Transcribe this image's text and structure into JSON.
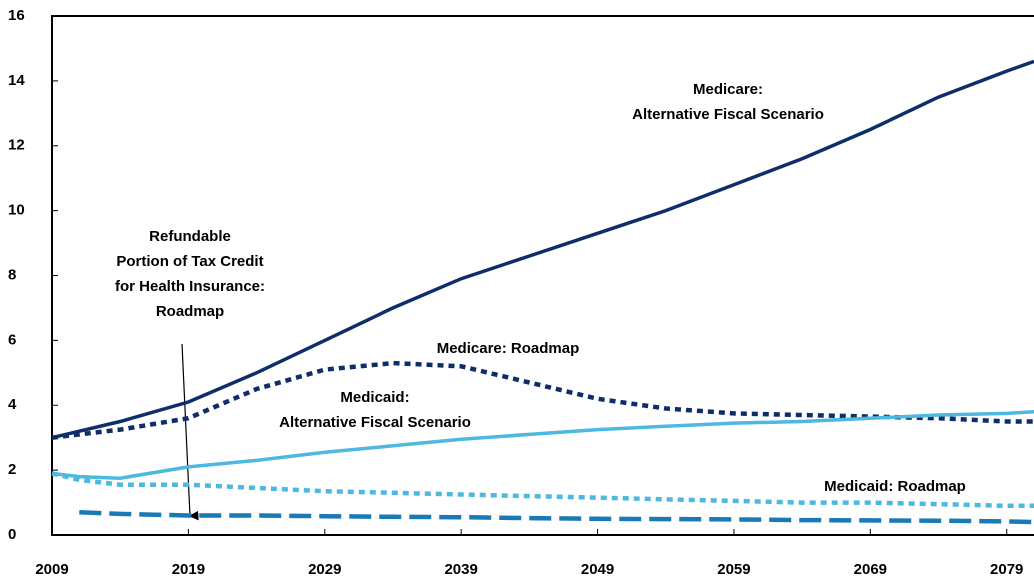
{
  "chart_data": {
    "type": "line",
    "x": [
      2009,
      2011,
      2014,
      2019,
      2024,
      2029,
      2034,
      2039,
      2044,
      2049,
      2054,
      2059,
      2064,
      2069,
      2074,
      2079,
      2081
    ],
    "xlim": [
      2009,
      2081
    ],
    "xticks": [
      2009,
      2019,
      2029,
      2039,
      2049,
      2059,
      2069,
      2079
    ],
    "ylim": [
      0,
      16
    ],
    "yticks": [
      0,
      2,
      4,
      6,
      8,
      10,
      12,
      14,
      16
    ],
    "grid": false,
    "series": [
      {
        "label": [
          "Medicare:",
          "Alternative Fiscal Scenario"
        ],
        "color": "#0d2d6b",
        "dash": "solid",
        "values": [
          3.0,
          3.2,
          3.5,
          4.1,
          5.0,
          6.0,
          7.0,
          7.9,
          8.6,
          9.3,
          10.0,
          10.8,
          11.6,
          12.5,
          13.5,
          14.3,
          14.6
        ]
      },
      {
        "label": [
          "Medicare: Roadmap"
        ],
        "color": "#0d2d6b",
        "dash": "dotted",
        "values": [
          3.0,
          3.1,
          3.25,
          3.6,
          4.5,
          5.1,
          5.3,
          5.2,
          4.7,
          4.2,
          3.9,
          3.75,
          3.7,
          3.65,
          3.6,
          3.5,
          3.5
        ]
      },
      {
        "label": [
          "Medicaid:",
          "Alternative Fiscal Scenario"
        ],
        "color": "#4db8e0",
        "dash": "solid",
        "values": [
          1.9,
          1.8,
          1.75,
          2.1,
          2.3,
          2.55,
          2.75,
          2.95,
          3.1,
          3.25,
          3.35,
          3.45,
          3.5,
          3.6,
          3.7,
          3.75,
          3.8
        ]
      },
      {
        "label": [
          "Medicaid: Roadmap"
        ],
        "color": "#4db8e0",
        "dash": "dotted",
        "values": [
          1.9,
          1.7,
          1.55,
          1.55,
          1.45,
          1.35,
          1.3,
          1.25,
          1.2,
          1.15,
          1.1,
          1.05,
          1.0,
          1.0,
          0.95,
          0.9,
          0.9
        ]
      },
      {
        "label": [
          "Refundable",
          "Portion of Tax Credit",
          "for Health Insurance:",
          "Roadmap"
        ],
        "color": "#1a7ab5",
        "dash": "dashed",
        "values": [
          null,
          0.7,
          0.65,
          0.6,
          0.6,
          0.58,
          0.56,
          0.55,
          0.52,
          0.5,
          0.49,
          0.48,
          0.46,
          0.45,
          0.44,
          0.42,
          0.4
        ]
      }
    ]
  }
}
